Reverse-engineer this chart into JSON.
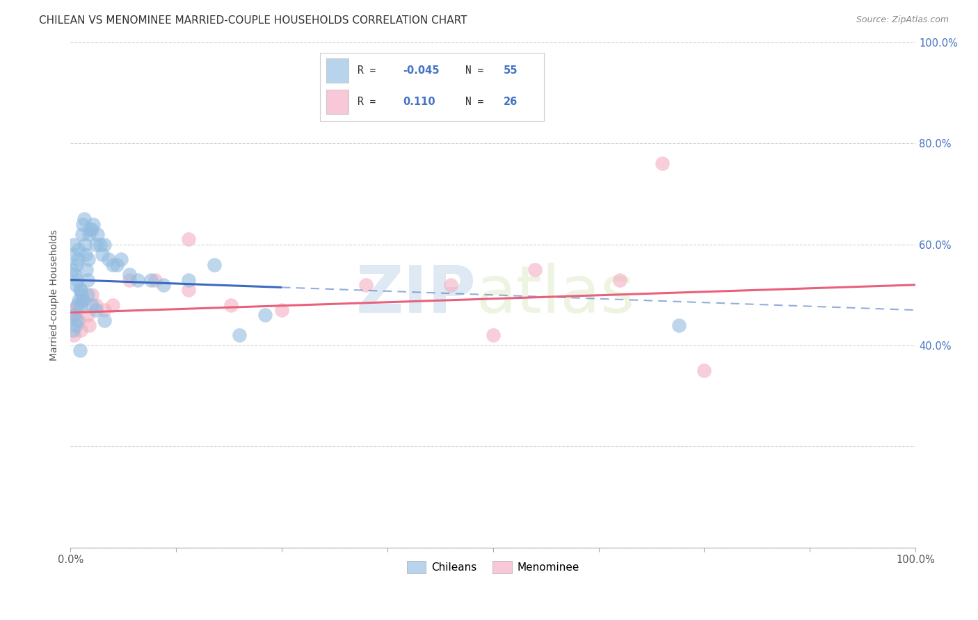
{
  "title": "CHILEAN VS MENOMINEE MARRIED-COUPLE HOUSEHOLDS CORRELATION CHART",
  "source": "Source: ZipAtlas.com",
  "ylabel": "Married-couple Households",
  "watermark_zip": "ZIP",
  "watermark_atlas": "atlas",
  "blue_dot_color": "#92bce0",
  "pink_dot_color": "#f2aec0",
  "blue_line_color": "#3a6abf",
  "pink_line_color": "#e8607a",
  "blue_legend_color": "#b8d4ec",
  "pink_legend_color": "#f8c8d8",
  "right_tick_color": "#4472c4",
  "grid_color": "#d0d0d0",
  "title_color": "#333333",
  "source_color": "#888888",
  "ylabel_color": "#555555",
  "blue_R": -0.045,
  "blue_N": 55,
  "pink_R": 0.11,
  "pink_N": 26,
  "blue_intercept": 53.0,
  "blue_slope": -0.06,
  "pink_intercept": 46.5,
  "pink_slope": 0.055,
  "blue_x": [
    0.2,
    0.3,
    0.4,
    0.5,
    0.6,
    0.7,
    0.8,
    0.9,
    1.0,
    1.1,
    1.2,
    1.3,
    1.4,
    1.5,
    1.6,
    1.7,
    1.8,
    1.9,
    2.0,
    2.1,
    2.2,
    2.3,
    2.5,
    2.7,
    3.0,
    3.2,
    3.5,
    3.8,
    4.0,
    4.5,
    5.0,
    5.5,
    6.0,
    7.0,
    8.0,
    9.5,
    11.0,
    14.0,
    17.0,
    20.0,
    0.4,
    0.6,
    0.8,
    1.0,
    1.2,
    1.5,
    2.0,
    2.5,
    3.0,
    4.0,
    0.3,
    0.7,
    1.1,
    23.0,
    72.0
  ],
  "blue_y": [
    55,
    58,
    60,
    54,
    52,
    56,
    53,
    57,
    59,
    51,
    48,
    50,
    62,
    64,
    65,
    60,
    58,
    55,
    53,
    57,
    62,
    63,
    63,
    64,
    60,
    62,
    60,
    58,
    60,
    57,
    56,
    56,
    57,
    54,
    53,
    53,
    52,
    53,
    56,
    42,
    46,
    44,
    48,
    49,
    51,
    49,
    50,
    48,
    47,
    45,
    43,
    45,
    39,
    46,
    44
  ],
  "pink_x": [
    0.3,
    0.5,
    0.8,
    1.0,
    1.5,
    2.0,
    2.5,
    3.0,
    4.0,
    5.0,
    7.0,
    10.0,
    14.0,
    19.0,
    25.0,
    35.0,
    45.0,
    55.0,
    65.0,
    70.0,
    0.4,
    1.2,
    2.2,
    50.0,
    75.0,
    14.0
  ],
  "pink_y": [
    47,
    46,
    48,
    45,
    49,
    46,
    50,
    48,
    47,
    48,
    53,
    53,
    51,
    48,
    47,
    52,
    52,
    55,
    53,
    76,
    42,
    43,
    44,
    42,
    35,
    61
  ]
}
